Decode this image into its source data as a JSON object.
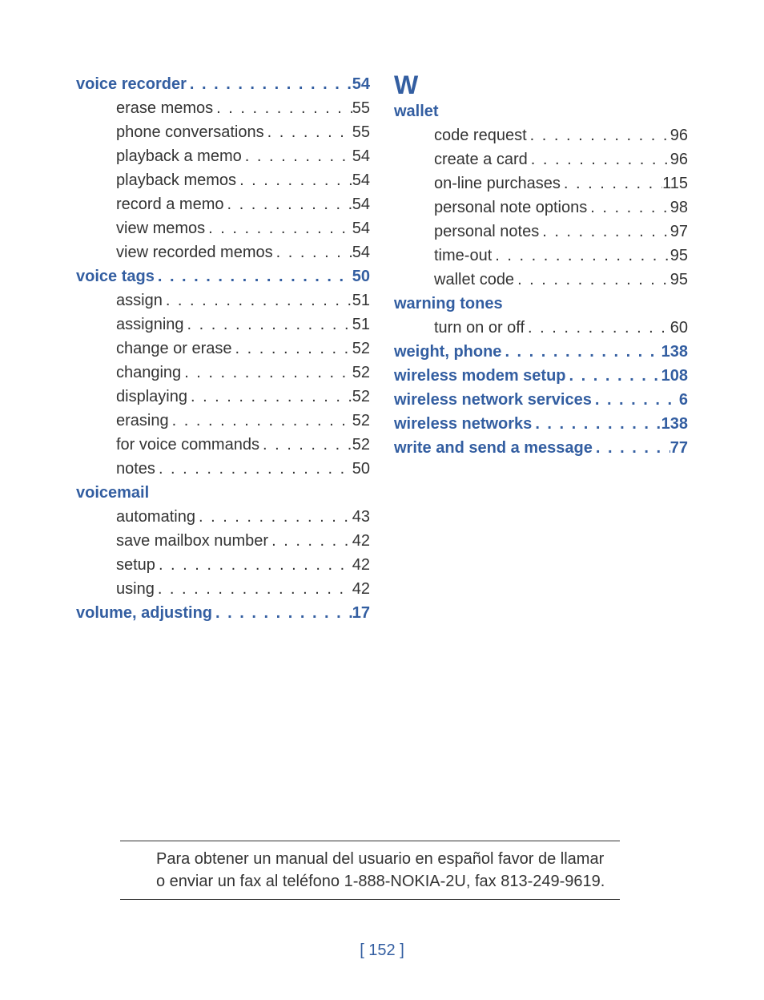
{
  "colors": {
    "heading": "#335ea1",
    "body": "#333333",
    "background": "#ffffff",
    "rule": "#333333"
  },
  "typography": {
    "body_size_pt": 15,
    "heading_weight": "bold",
    "line_height": 1.5,
    "family_hint": "humanist sans (Trebuchet-like)"
  },
  "left_column": [
    {
      "type": "heading",
      "label": "voice recorder",
      "page": "54"
    },
    {
      "type": "sub",
      "label": "erase memos",
      "page": "55"
    },
    {
      "type": "sub",
      "label": "phone conversations",
      "page": "55"
    },
    {
      "type": "sub",
      "label": "playback a memo",
      "page": "54"
    },
    {
      "type": "sub",
      "label": "playback memos",
      "page": "54"
    },
    {
      "type": "sub",
      "label": "record a memo",
      "page": "54"
    },
    {
      "type": "sub",
      "label": "view memos",
      "page": "54"
    },
    {
      "type": "sub",
      "label": "view recorded memos",
      "page": "54"
    },
    {
      "type": "heading",
      "label": "voice tags",
      "page": "50"
    },
    {
      "type": "sub",
      "label": "assign",
      "page": "51"
    },
    {
      "type": "sub",
      "label": "assigning",
      "page": "51"
    },
    {
      "type": "sub",
      "label": "change or erase",
      "page": "52"
    },
    {
      "type": "sub",
      "label": "changing",
      "page": "52"
    },
    {
      "type": "sub",
      "label": "displaying",
      "page": "52"
    },
    {
      "type": "sub",
      "label": "erasing",
      "page": "52"
    },
    {
      "type": "sub",
      "label": "for voice commands",
      "page": "52"
    },
    {
      "type": "sub",
      "label": "notes",
      "page": "50"
    },
    {
      "type": "heading",
      "label": "voicemail",
      "page": null
    },
    {
      "type": "sub",
      "label": "automating",
      "page": "43"
    },
    {
      "type": "sub",
      "label": "save mailbox number",
      "page": "42"
    },
    {
      "type": "sub",
      "label": "setup",
      "page": "42"
    },
    {
      "type": "sub",
      "label": "using",
      "page": "42"
    },
    {
      "type": "heading",
      "label": "volume, adjusting",
      "page": "17"
    }
  ],
  "right_column": {
    "letter": "W",
    "entries": [
      {
        "type": "heading",
        "label": "wallet",
        "page": null
      },
      {
        "type": "sub",
        "label": "code request",
        "page": "96"
      },
      {
        "type": "sub",
        "label": "create a card",
        "page": "96"
      },
      {
        "type": "sub",
        "label": "on-line purchases",
        "page": "115"
      },
      {
        "type": "sub",
        "label": "personal note options",
        "page": "98"
      },
      {
        "type": "sub",
        "label": "personal notes",
        "page": "97"
      },
      {
        "type": "sub",
        "label": "time-out",
        "page": "95"
      },
      {
        "type": "sub",
        "label": "wallet code",
        "page": "95"
      },
      {
        "type": "heading",
        "label": "warning tones",
        "page": null
      },
      {
        "type": "sub",
        "label": "turn on or off",
        "page": "60"
      },
      {
        "type": "heading",
        "label": "weight, phone",
        "page": "138"
      },
      {
        "type": "heading",
        "label": "wireless modem setup",
        "page": "108"
      },
      {
        "type": "heading",
        "label": "wireless network services",
        "page": "6"
      },
      {
        "type": "heading",
        "label": "wireless networks",
        "page": "138"
      },
      {
        "type": "heading",
        "label": "write and send a message",
        "page": "77"
      }
    ]
  },
  "footer_note": "Para obtener un manual del usuario en español favor de llamar o enviar un fax al teléfono 1-888-NOKIA-2U, fax 813-249-9619.",
  "page_number": "[ 152 ]"
}
